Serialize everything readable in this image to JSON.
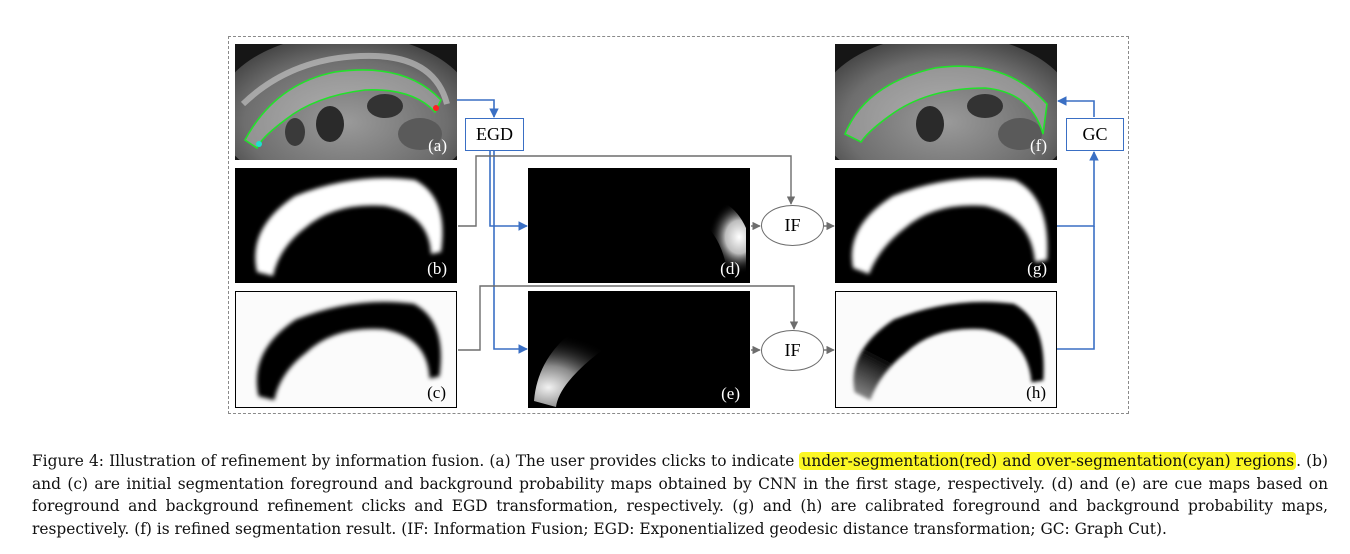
{
  "figure": {
    "panels": {
      "a": "(a)",
      "b": "(b)",
      "c": "(c)",
      "d": "(d)",
      "e": "(e)",
      "f": "(f)",
      "g": "(g)",
      "h": "(h)"
    },
    "ops": {
      "egd": "EGD",
      "gc": "GC",
      "if_top": "IF",
      "if_bottom": "IF"
    },
    "colors": {
      "segmentation_contour": "#22e22a",
      "under_segmentation_click": "#ff2020",
      "over_segmentation_click": "#20e0d0",
      "arrow_blue": "#3a6fc4",
      "arrow_gray": "#6d6d6d",
      "highlight": "#fbf724"
    }
  },
  "caption": {
    "part1": "Figure 4: Illustration of refinement by information fusion. (a) The user provides clicks to indicate ",
    "highlight": "under-segmentation(red) and over-segmentation(cyan) regions",
    "part2": ". (b) and (c) are initial segmentation foreground and background probability maps obtained by CNN in the first stage, respectively. (d) and (e) are cue maps based on foreground and background refinement clicks and EGD transformation, respectively. (g) and (h) are calibrated foreground and background probability maps, respectively. (f) is refined segmentation result. (IF: Information Fusion; EGD: Exponentialized geodesic distance transformation; GC: Graph Cut)."
  }
}
